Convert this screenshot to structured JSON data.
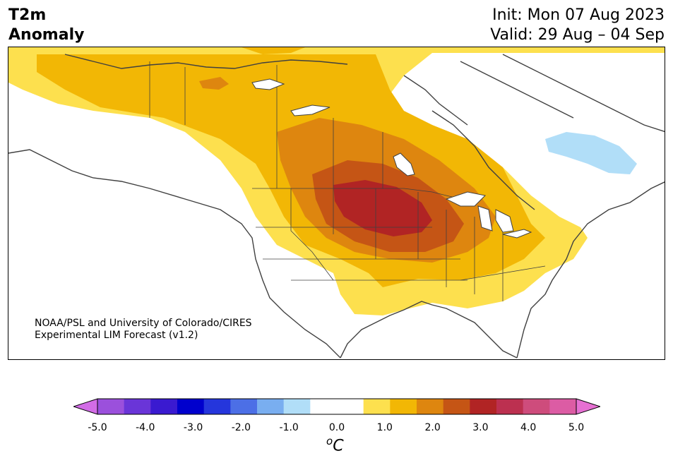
{
  "header": {
    "title_line1": "T2m",
    "title_line2": "Anomaly",
    "init": "Init: Mon 07 Aug 2023",
    "valid": "Valid: 29 Aug – 04 Sep"
  },
  "credit": {
    "line1": "NOAA/PSL and University of Colorado/CIRES",
    "line2": "Experimental LIM Forecast (v1.2)"
  },
  "legend": {
    "ticks": [
      "-5.0",
      "-4.0",
      "-3.0",
      "-2.0",
      "-1.0",
      "0.0",
      "1.0",
      "2.0",
      "3.0",
      "4.0",
      "5.0"
    ],
    "unit_super": "o",
    "unit": "C",
    "colors": [
      "#d26ce6",
      "#9b50dc",
      "#6a35d8",
      "#3a1ad0",
      "#0000cd",
      "#2536dc",
      "#4c6fe6",
      "#79aef0",
      "#b1def8",
      "#ffffff",
      "#ffffff",
      "#fde04e",
      "#f2b705",
      "#de860f",
      "#c55515",
      "#b12424",
      "#bc3050",
      "#ce4c7c",
      "#dc5ca4",
      "#e670d2"
    ]
  },
  "map": {
    "region": "North America",
    "anomaly_colors": {
      "pos_0_5_1": "#fde04e",
      "pos_1_1_5": "#f2b705",
      "pos_1_5_2": "#de860f",
      "pos_2_2_5": "#c55515",
      "pos_2_5_3": "#b12424",
      "neg_0_5_1": "#b1def8"
    }
  }
}
